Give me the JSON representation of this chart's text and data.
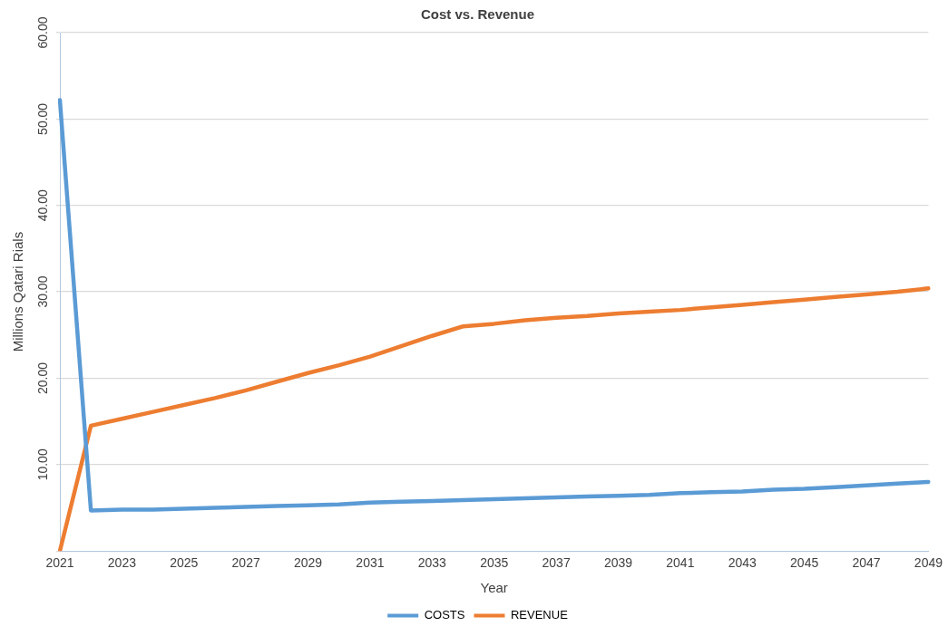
{
  "chart_data": {
    "type": "line",
    "title": "Cost vs. Revenue",
    "xlabel": "Year",
    "ylabel": "Millions Qatari Rials",
    "categories": [
      "2021",
      null,
      "2023",
      null,
      "2025",
      null,
      "2027",
      null,
      "2029",
      null,
      "2031",
      null,
      "2033",
      null,
      "2035",
      null,
      "2037",
      null,
      "2039",
      null,
      "2041",
      null,
      "2043",
      null,
      "2045",
      null,
      "2047",
      null,
      "2049"
    ],
    "series": [
      {
        "name": "COSTS",
        "color": "#5b9bd5",
        "values": [
          52.2,
          4.7,
          4.8,
          4.8,
          4.9,
          5.0,
          5.1,
          5.2,
          5.3,
          5.4,
          5.6,
          5.7,
          5.8,
          5.9,
          6.0,
          6.1,
          6.2,
          6.3,
          6.4,
          6.5,
          6.7,
          6.8,
          6.9,
          7.1,
          7.2,
          7.4,
          7.6,
          7.8,
          8.0
        ]
      },
      {
        "name": "REVENUE",
        "color": "#ed7d31",
        "values": [
          0,
          14.5,
          15.3,
          16.1,
          16.9,
          17.7,
          18.6,
          19.6,
          20.6,
          21.5,
          22.5,
          23.7,
          24.9,
          26.0,
          26.3,
          26.7,
          27.0,
          27.2,
          27.5,
          27.7,
          27.9,
          28.2,
          28.5,
          28.8,
          29.1,
          29.4,
          29.7,
          30.0,
          30.4
        ]
      }
    ],
    "ylim": [
      0,
      60
    ],
    "yticks": [
      {
        "value": 0,
        "label": null
      },
      {
        "value": 10,
        "label": "10.00"
      },
      {
        "value": 20,
        "label": "20.00"
      },
      {
        "value": 30,
        "label": "30.00"
      },
      {
        "value": 40,
        "label": "40.00"
      },
      {
        "value": 50,
        "label": "50.00"
      },
      {
        "value": 60,
        "label": "60.00"
      }
    ],
    "grid": "y",
    "legend": "bottom",
    "marker": "none",
    "line_style": "solid"
  }
}
